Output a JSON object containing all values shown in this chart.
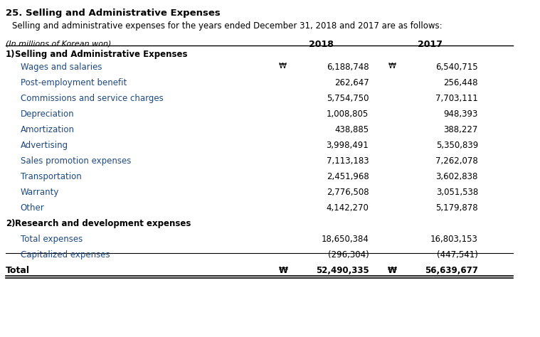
{
  "title": "25. Selling and Administrative Expenses",
  "subtitle": "Selling and administrative expenses for the years ended December 31, 2018 and 2017 are as follows:",
  "header_label": "(In millions of Korean won)",
  "col_2018": "2018",
  "col_2017": "2017",
  "bg_color": "#ffffff",
  "text_color": "#000000",
  "blue_color": "#1f497d",
  "section1_label": "1) Selling and Administrative Expenses",
  "section2_label": "2) Research and development expenses",
  "total_label": "Total",
  "rows": [
    {
      "label": "Wages and salaries",
      "val2018": "6,188,748",
      "val2017": "6,540,715",
      "won2018": true,
      "won2017": true,
      "indent": true
    },
    {
      "label": "Post-employment benefit",
      "val2018": "262,647",
      "val2017": "256,448",
      "won2018": false,
      "won2017": false,
      "indent": true
    },
    {
      "label": "Commissions and service charges",
      "val2018": "5,754,750",
      "val2017": "7,703,111",
      "won2018": false,
      "won2017": false,
      "indent": true
    },
    {
      "label": "Depreciation",
      "val2018": "1,008,805",
      "val2017": "948,393",
      "won2018": false,
      "won2017": false,
      "indent": true
    },
    {
      "label": "Amortization",
      "val2018": "438,885",
      "val2017": "388,227",
      "won2018": false,
      "won2017": false,
      "indent": true
    },
    {
      "label": "Advertising",
      "val2018": "3,998,491",
      "val2017": "5,350,839",
      "won2018": false,
      "won2017": false,
      "indent": true
    },
    {
      "label": "Sales promotion expenses",
      "val2018": "7,113,183",
      "val2017": "7,262,078",
      "won2018": false,
      "won2017": false,
      "indent": true
    },
    {
      "label": "Transportation",
      "val2018": "2,451,968",
      "val2017": "3,602,838",
      "won2018": false,
      "won2017": false,
      "indent": true
    },
    {
      "label": "Warranty",
      "val2018": "2,776,508",
      "val2017": "3,051,538",
      "won2018": false,
      "won2017": false,
      "indent": true
    },
    {
      "label": "Other",
      "val2018": "4,142,270",
      "val2017": "5,179,878",
      "won2018": false,
      "won2017": false,
      "indent": true
    },
    {
      "label": "Total expenses",
      "val2018": "18,650,384",
      "val2017": "16,803,153",
      "won2018": false,
      "won2017": false,
      "indent": true
    },
    {
      "label": "Capitalized expenses",
      "val2018": "(296,304)",
      "val2017": "(447,541)",
      "won2018": false,
      "won2017": false,
      "indent": true
    }
  ],
  "total_val2018": "52,490,335",
  "total_val2017": "56,639,677"
}
